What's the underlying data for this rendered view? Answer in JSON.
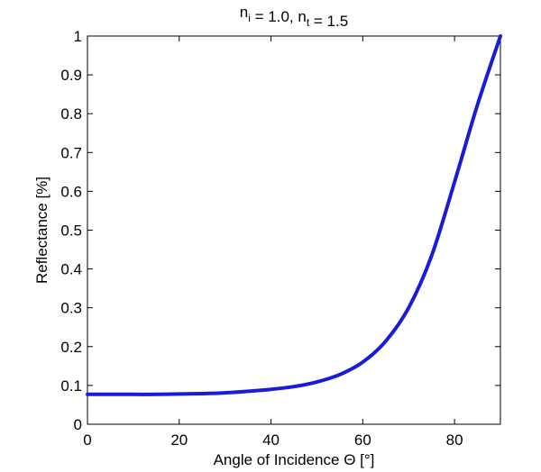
{
  "chart_data": {
    "type": "line",
    "title": {
      "parts": [
        {
          "text": "n",
          "sub": "i"
        },
        {
          "text": " = 1.0, "
        },
        {
          "text": "n",
          "sub": "t"
        },
        {
          "text": " = 1.5"
        }
      ]
    },
    "xlabel": "Angle of Incidence Θ [°]",
    "ylabel": "Reflectance [%]",
    "xlim": [
      0,
      90
    ],
    "ylim": [
      0,
      1
    ],
    "x_ticks": [
      "0",
      "20",
      "40",
      "60",
      "80"
    ],
    "y_ticks": [
      "0",
      "0.1",
      "0.2",
      "0.3",
      "0.4",
      "0.5",
      "0.6",
      "0.7",
      "0.8",
      "0.9",
      "1"
    ],
    "grid": false,
    "series": [
      {
        "color": "#1a1ad9",
        "x": [
          0,
          5,
          10,
          15,
          20,
          25,
          30,
          35,
          40,
          45,
          50,
          55,
          60,
          65,
          70,
          75,
          80,
          85,
          90
        ],
        "y": [
          0.077,
          0.077,
          0.077,
          0.077,
          0.078,
          0.079,
          0.081,
          0.085,
          0.09,
          0.097,
          0.109,
          0.128,
          0.16,
          0.214,
          0.3,
          0.434,
          0.624,
          0.823,
          1.0
        ]
      }
    ]
  }
}
